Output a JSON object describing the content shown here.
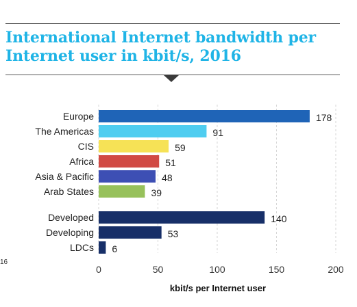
{
  "header": {
    "title": "International Internet bandwidth per Internet user in kbit/s, 2016"
  },
  "side_fragment": "16",
  "colors": {
    "title": "#1fb4e6",
    "grid": "#d6d6d6",
    "text": "#222222"
  },
  "chart_data": {
    "type": "bar",
    "orientation": "horizontal",
    "title": "International Internet bandwidth per Internet user in kbit/s, 2016",
    "xlabel": "kbit/s per Internet user",
    "ylabel": "",
    "xlim": [
      0,
      200
    ],
    "xticks": [
      0,
      50,
      100,
      150,
      200
    ],
    "grid": "vertical dashed",
    "groups": [
      {
        "bars": [
          {
            "category": "Europe",
            "value": 178,
            "color": "#1f64b7"
          },
          {
            "category": "The Americas",
            "value": 91,
            "color": "#4fcdf0"
          },
          {
            "category": "CIS",
            "value": 59,
            "color": "#f6e256"
          },
          {
            "category": "Africa",
            "value": 51,
            "color": "#d14a44"
          },
          {
            "category": "Asia & Pacific",
            "value": 48,
            "color": "#3d4fb4"
          },
          {
            "category": "Arab States",
            "value": 39,
            "color": "#97c15b"
          }
        ]
      },
      {
        "bars": [
          {
            "category": "Developed",
            "value": 140,
            "color": "#172f68"
          },
          {
            "category": "Developing",
            "value": 53,
            "color": "#172f68"
          },
          {
            "category": "LDCs",
            "value": 6,
            "color": "#172f68"
          }
        ]
      }
    ]
  }
}
